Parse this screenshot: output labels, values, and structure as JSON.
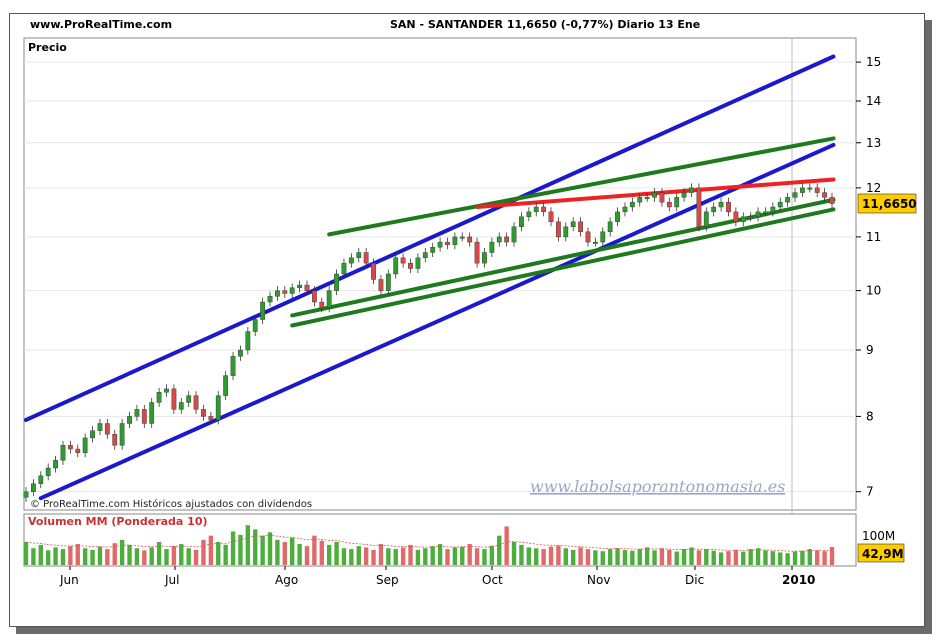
{
  "header": {
    "site": "www.ProRealTime.com",
    "ticker_info": "SAN - SANTANDER    11,6650 (-0,77%)   Diario  13 Ene"
  },
  "price_panel": {
    "label": "Precio",
    "footer_note": "© ProRealTime.com Históricos ajustados con dividendos",
    "watermark": "www.labolsaporantonomasia.es",
    "last_price_badge": "11,6650"
  },
  "volume_panel": {
    "label_prefix": "Volumen ",
    "label_mm": "MM",
    "label_suffix": " (Ponderada 10)",
    "axis_label": "100M",
    "last_volume_badge": "42,9M"
  },
  "colors": {
    "up_candle": "#2e9b2e",
    "down_candle": "#d44a4a",
    "blue_channel": "#1a1acc",
    "green_lines": "#1f7a1f",
    "red_resistance": "#ee2222",
    "badge_bg": "#ffcc00"
  },
  "chart_data": {
    "type": "candlestick",
    "x_axis_labels": [
      "Jun",
      "Jul",
      "Ago",
      "Sep",
      "Oct",
      "Nov",
      "Dic",
      "2010"
    ],
    "y_axis_labels": [
      "7",
      "8",
      "9",
      "10",
      "11",
      "12",
      "13",
      "14",
      "15"
    ],
    "y_scale": "log",
    "ylim": [
      6.8,
      15.6
    ],
    "price_path": [
      7.0,
      7.1,
      7.2,
      7.3,
      7.4,
      7.6,
      7.55,
      7.5,
      7.7,
      7.8,
      7.9,
      7.75,
      7.6,
      7.9,
      8.0,
      8.1,
      7.9,
      8.2,
      8.35,
      8.4,
      8.1,
      8.2,
      8.3,
      8.1,
      8.0,
      7.95,
      8.3,
      8.6,
      8.9,
      9.0,
      9.3,
      9.5,
      9.8,
      9.9,
      10.0,
      9.95,
      10.05,
      10.1,
      10.0,
      9.8,
      9.7,
      10.0,
      10.3,
      10.5,
      10.6,
      10.7,
      10.5,
      10.2,
      10.0,
      10.3,
      10.6,
      10.5,
      10.4,
      10.6,
      10.7,
      10.8,
      10.9,
      10.85,
      11.0,
      11.0,
      10.9,
      10.5,
      10.7,
      10.9,
      11.0,
      10.9,
      11.2,
      11.4,
      11.5,
      11.6,
      11.5,
      11.3,
      11.0,
      11.2,
      11.3,
      11.1,
      10.9,
      10.9,
      11.1,
      11.3,
      11.5,
      11.6,
      11.7,
      11.8,
      11.8,
      11.9,
      11.7,
      11.6,
      11.8,
      11.9,
      12.0,
      11.2,
      11.5,
      11.6,
      11.7,
      11.5,
      11.3,
      11.4,
      11.4,
      11.5,
      11.5,
      11.6,
      11.7,
      11.8,
      11.9,
      12.0,
      12.0,
      11.9,
      11.8,
      11.67
    ],
    "volume_path": [
      55,
      40,
      48,
      35,
      42,
      38,
      45,
      50,
      40,
      36,
      44,
      38,
      52,
      60,
      48,
      40,
      35,
      42,
      55,
      38,
      45,
      50,
      40,
      36,
      60,
      70,
      55,
      48,
      80,
      72,
      95,
      85,
      70,
      78,
      60,
      55,
      65,
      50,
      45,
      70,
      58,
      48,
      55,
      40,
      38,
      45,
      42,
      36,
      50,
      40,
      38,
      42,
      48,
      36,
      40,
      45,
      50,
      38,
      42,
      44,
      50,
      40,
      38,
      46,
      70,
      92,
      55,
      48,
      42,
      40,
      38,
      44,
      46,
      40,
      36,
      42,
      38,
      35,
      33,
      38,
      40,
      36,
      34,
      38,
      42,
      35,
      40,
      36,
      32,
      38,
      42,
      35,
      38,
      34,
      30,
      33,
      36,
      32,
      38,
      40,
      35,
      33,
      30,
      28,
      32,
      34,
      38,
      35,
      33,
      42.9
    ],
    "volume_scale_max": 100,
    "volume_unit": "M",
    "trendlines": [
      {
        "color": "blue",
        "from": [
          0,
          7.95
        ],
        "to": [
          109.2,
          15.15
        ]
      },
      {
        "color": "blue",
        "from": [
          2,
          6.92
        ],
        "to": [
          109.2,
          12.95
        ]
      },
      {
        "color": "green",
        "from": [
          41,
          11.05
        ],
        "to": [
          109.2,
          13.1
        ]
      },
      {
        "color": "green",
        "from": [
          36,
          9.57
        ],
        "to": [
          109.2,
          11.75
        ]
      },
      {
        "color": "green",
        "from": [
          36,
          9.4
        ],
        "to": [
          109.2,
          11.55
        ]
      },
      {
        "color": "red",
        "from": [
          61,
          11.6
        ],
        "to": [
          109.2,
          12.18
        ]
      }
    ]
  }
}
